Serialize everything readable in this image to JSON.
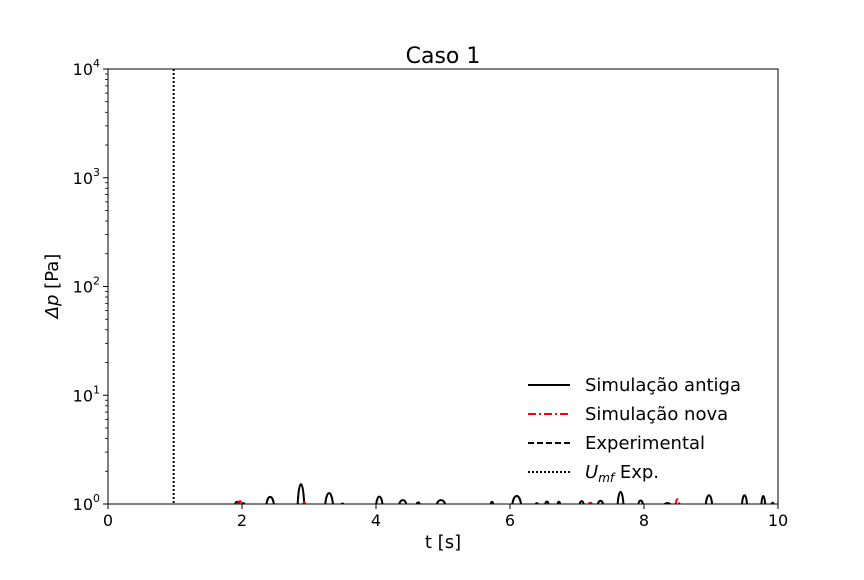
{
  "chart_data": {
    "type": "line",
    "title": "Caso 1",
    "xlabel": "t [s]",
    "ylabel": "Δp [Pa]",
    "xlim": [
      0,
      10
    ],
    "ylim": [
      1,
      10000
    ],
    "yscale": "log",
    "grid": false,
    "legend_position": "lower-right",
    "x_ticks": [
      {
        "value": 0,
        "label": "0"
      },
      {
        "value": 2,
        "label": "2"
      },
      {
        "value": 4,
        "label": "4"
      },
      {
        "value": 6,
        "label": "6"
      },
      {
        "value": 8,
        "label": "8"
      },
      {
        "value": 10,
        "label": "10"
      }
    ],
    "y_ticks": [
      {
        "value": 1,
        "base": "10",
        "exp": "0"
      },
      {
        "value": 10,
        "base": "10",
        "exp": "1"
      },
      {
        "value": 100,
        "base": "10",
        "exp": "2"
      },
      {
        "value": 1000,
        "base": "10",
        "exp": "3"
      },
      {
        "value": 10000,
        "base": "10",
        "exp": "4"
      }
    ],
    "series": [
      {
        "name": "Simulação antiga",
        "color": "#000000",
        "style": "solid",
        "peaks": [
          {
            "t": 1.93,
            "peak": 1.08,
            "width": 0.08
          },
          {
            "t": 2.02,
            "peak": 1.04,
            "width": 0.05
          },
          {
            "t": 2.42,
            "peak": 1.24,
            "width": 0.12
          },
          {
            "t": 2.88,
            "peak": 1.78,
            "width": 0.1
          },
          {
            "t": 3.3,
            "peak": 1.38,
            "width": 0.12
          },
          {
            "t": 3.5,
            "peak": 1.03,
            "width": 0.05
          },
          {
            "t": 4.05,
            "peak": 1.25,
            "width": 0.1
          },
          {
            "t": 4.4,
            "peak": 1.13,
            "width": 0.12
          },
          {
            "t": 4.63,
            "peak": 1.06,
            "width": 0.06
          },
          {
            "t": 4.97,
            "peak": 1.13,
            "width": 0.14
          },
          {
            "t": 5.73,
            "peak": 1.08,
            "width": 0.05
          },
          {
            "t": 6.1,
            "peak": 1.27,
            "width": 0.14
          },
          {
            "t": 6.4,
            "peak": 1.04,
            "width": 0.05
          },
          {
            "t": 6.55,
            "peak": 1.09,
            "width": 0.06
          },
          {
            "t": 6.73,
            "peak": 1.08,
            "width": 0.05
          },
          {
            "t": 7.07,
            "peak": 1.1,
            "width": 0.07
          },
          {
            "t": 7.35,
            "peak": 1.11,
            "width": 0.09
          },
          {
            "t": 7.65,
            "peak": 1.43,
            "width": 0.09
          },
          {
            "t": 7.95,
            "peak": 1.12,
            "width": 0.08
          },
          {
            "t": 8.35,
            "peak": 1.04,
            "width": 0.12
          },
          {
            "t": 8.97,
            "peak": 1.3,
            "width": 0.1
          },
          {
            "t": 9.5,
            "peak": 1.3,
            "width": 0.08
          },
          {
            "t": 9.78,
            "peak": 1.27,
            "width": 0.06
          },
          {
            "t": 9.92,
            "peak": 1.05,
            "width": 0.04
          }
        ]
      },
      {
        "name": "Simulação nova",
        "color": "#ff0000",
        "style": "dashdot",
        "peaks": [
          {
            "t": 1.97,
            "peak": 1.1,
            "width": 0.06
          },
          {
            "t": 2.93,
            "peak": 1.06,
            "width": 0.04
          },
          {
            "t": 7.2,
            "peak": 1.05,
            "width": 0.06
          },
          {
            "t": 8.5,
            "peak": 1.16,
            "width": 0.06
          }
        ]
      },
      {
        "name": "Experimental",
        "color": "#000000",
        "style": "dashed",
        "peaks": []
      }
    ],
    "vlines": [
      {
        "name": "U_mf Exp.",
        "x": 0.98,
        "style": "dotted",
        "color": "#000000"
      }
    ],
    "legend": [
      {
        "label": "Simulação antiga",
        "style": "solid",
        "color": "#000000"
      },
      {
        "label": "Simulação nova",
        "style": "dashdot",
        "color": "#ff0000"
      },
      {
        "label": "Experimental",
        "style": "dashed",
        "color": "#000000"
      },
      {
        "label_base": "U",
        "label_sub": "mf",
        "label_rest": " Exp.",
        "style": "dotted",
        "color": "#000000"
      }
    ]
  }
}
